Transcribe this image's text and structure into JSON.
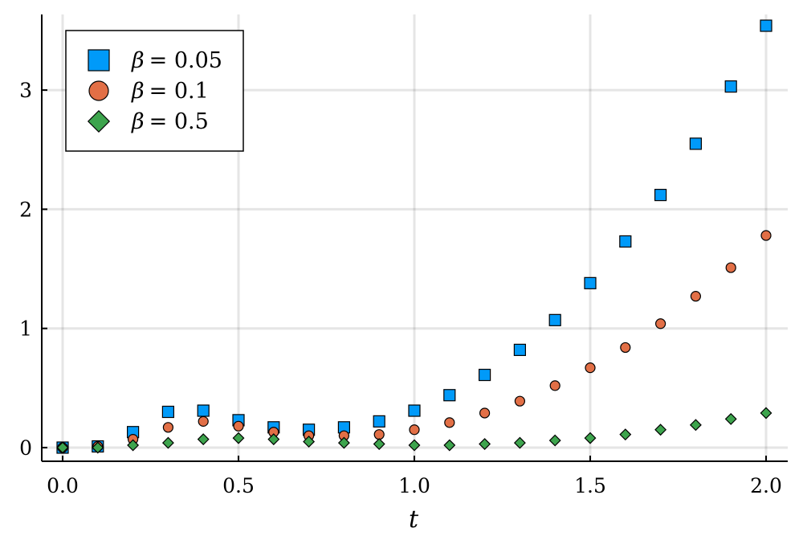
{
  "chart_data": {
    "type": "scatter",
    "title": "",
    "xlabel": "t",
    "ylabel": "",
    "xlim": [
      -0.05,
      2.06
    ],
    "ylim": [
      -0.1,
      3.65
    ],
    "xticks": [
      {
        "value": 0.0,
        "label": "0.0"
      },
      {
        "value": 0.5,
        "label": "0.5"
      },
      {
        "value": 1.0,
        "label": "1.0"
      },
      {
        "value": 1.5,
        "label": "1.5"
      },
      {
        "value": 2.0,
        "label": "2.0"
      }
    ],
    "yticks": [
      {
        "value": 0,
        "label": "0"
      },
      {
        "value": 1,
        "label": "1"
      },
      {
        "value": 2,
        "label": "2"
      },
      {
        "value": 3,
        "label": "3"
      }
    ],
    "grid": true,
    "legend_position": "top-left",
    "x": [
      0.0,
      0.1,
      0.2,
      0.3,
      0.4,
      0.5,
      0.6,
      0.7,
      0.8,
      0.9,
      1.0,
      1.1,
      1.2,
      1.3,
      1.4,
      1.5,
      1.6,
      1.7,
      1.8,
      1.9,
      2.0
    ],
    "series": [
      {
        "name": "β = 0.05",
        "legend_symbol": "β",
        "legend_value": "= 0.05",
        "marker": "square",
        "color": "#009af9",
        "values": [
          0.0,
          0.01,
          0.13,
          0.3,
          0.31,
          0.23,
          0.17,
          0.15,
          0.17,
          0.22,
          0.31,
          0.44,
          0.61,
          0.82,
          1.07,
          1.38,
          1.73,
          2.12,
          2.55,
          3.03,
          3.54
        ]
      },
      {
        "name": "β = 0.1",
        "legend_symbol": "β",
        "legend_value": "= 0.1",
        "marker": "circle",
        "color": "#e26f46",
        "values": [
          0.0,
          0.01,
          0.07,
          0.17,
          0.22,
          0.18,
          0.13,
          0.1,
          0.1,
          0.11,
          0.15,
          0.21,
          0.29,
          0.39,
          0.52,
          0.67,
          0.84,
          1.04,
          1.27,
          1.51,
          1.78
        ]
      },
      {
        "name": "β = 0.5",
        "legend_symbol": "β",
        "legend_value": "= 0.5",
        "marker": "diamond",
        "color": "#3da44d",
        "values": [
          0.0,
          0.0,
          0.02,
          0.04,
          0.07,
          0.08,
          0.07,
          0.05,
          0.04,
          0.03,
          0.02,
          0.02,
          0.03,
          0.04,
          0.06,
          0.08,
          0.11,
          0.15,
          0.19,
          0.24,
          0.29
        ]
      }
    ]
  }
}
